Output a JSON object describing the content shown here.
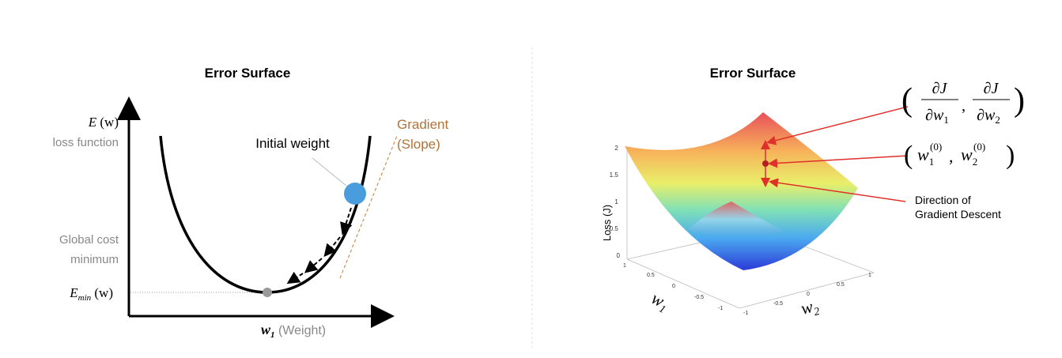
{
  "left": {
    "title": "Error Surface",
    "y_label": {
      "base": "E",
      "rest": "(w)"
    },
    "y_caption": "loss function",
    "gradient_label": [
      "Gradient",
      "(Slope)"
    ],
    "initial_weight": "Initial weight",
    "global_min": [
      "Global cost",
      "minimum"
    ],
    "e_min": {
      "base": "E",
      "sub": "min",
      "rest": "(w)"
    },
    "x_label": {
      "base": "w",
      "sub": "1",
      "rest": "(Weight)"
    }
  },
  "right": {
    "title": "Error Surface",
    "gradient": {
      "open": "(",
      "sep": ",",
      "close": ")",
      "terms": [
        {
          "num": "∂J",
          "den": "∂w",
          "sub": "1"
        },
        {
          "num": "∂J",
          "den": "∂w",
          "sub": "2"
        }
      ]
    },
    "point": {
      "open": "(",
      "sep": ",",
      "close": ")",
      "terms": [
        {
          "base": "w",
          "sub": "1",
          "sup": "(0)"
        },
        {
          "base": "w",
          "sub": "2",
          "sup": "(0)"
        }
      ]
    },
    "direction": [
      "Direction of",
      "Gradient Descent"
    ],
    "z_label": "Loss (J)",
    "z_ticks": [
      "2",
      "1.5",
      "1",
      "0.5",
      "0"
    ],
    "w1_ticks": [
      "1",
      "0.5",
      "0",
      "-0.5",
      "-1"
    ],
    "w2_ticks": [
      "-1",
      "-0.5",
      "0",
      "0.5",
      "1"
    ],
    "w1_label": {
      "base": "w",
      "sub": "1"
    },
    "w2_label": {
      "base": "w",
      "sub": "2"
    }
  }
}
